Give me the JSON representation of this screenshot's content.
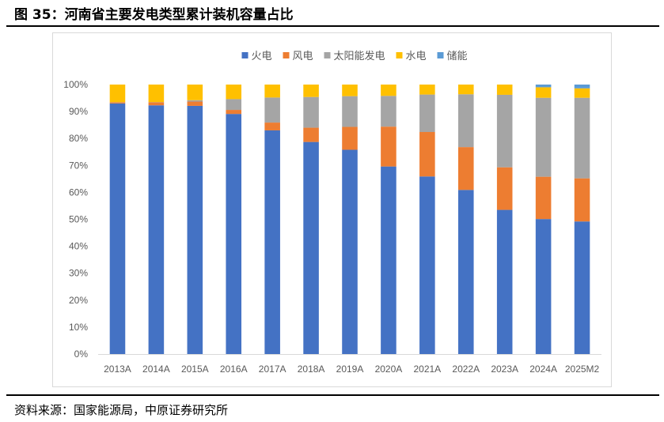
{
  "header": {
    "title": "图 35：河南省主要发电类型累计装机容量占比"
  },
  "footer": {
    "source": "资料来源：国家能源局，中原证券研究所"
  },
  "chart_data": {
    "type": "bar",
    "stacked": true,
    "categories": [
      "2013A",
      "2014A",
      "2015A",
      "2016A",
      "2017A",
      "2018A",
      "2019A",
      "2020A",
      "2021A",
      "2022A",
      "2023A",
      "2024A",
      "2025M2"
    ],
    "series": [
      {
        "name": "火电",
        "color": "#4472C4",
        "values": [
          93.0,
          92.3,
          92.1,
          89.1,
          83.0,
          78.7,
          75.8,
          69.6,
          65.9,
          60.9,
          53.5,
          50.1,
          49.2
        ]
      },
      {
        "name": "风电",
        "color": "#ED7D31",
        "values": [
          0.4,
          1.1,
          1.6,
          1.5,
          2.9,
          5.3,
          8.5,
          14.8,
          16.5,
          15.9,
          15.8,
          15.7,
          16.0
        ]
      },
      {
        "name": "太阳能发电",
        "color": "#A5A5A5",
        "values": [
          0.1,
          0.1,
          0.5,
          4.0,
          9.3,
          11.4,
          11.4,
          11.4,
          13.9,
          19.6,
          26.9,
          29.3,
          29.9
        ]
      },
      {
        "name": "水电",
        "color": "#FFC000",
        "values": [
          6.5,
          6.5,
          5.8,
          5.4,
          4.8,
          4.6,
          4.3,
          4.2,
          3.7,
          3.6,
          3.8,
          3.9,
          3.5
        ]
      },
      {
        "name": "储能",
        "color": "#5B9BD5",
        "values": [
          0,
          0,
          0,
          0,
          0,
          0,
          0,
          0,
          0,
          0,
          0,
          1.0,
          1.4
        ]
      }
    ],
    "y_ticks": [
      "0%",
      "10%",
      "20%",
      "30%",
      "40%",
      "50%",
      "60%",
      "70%",
      "80%",
      "90%",
      "100%"
    ],
    "ylim": [
      0,
      100
    ],
    "legend_position": "top",
    "grid": false
  }
}
